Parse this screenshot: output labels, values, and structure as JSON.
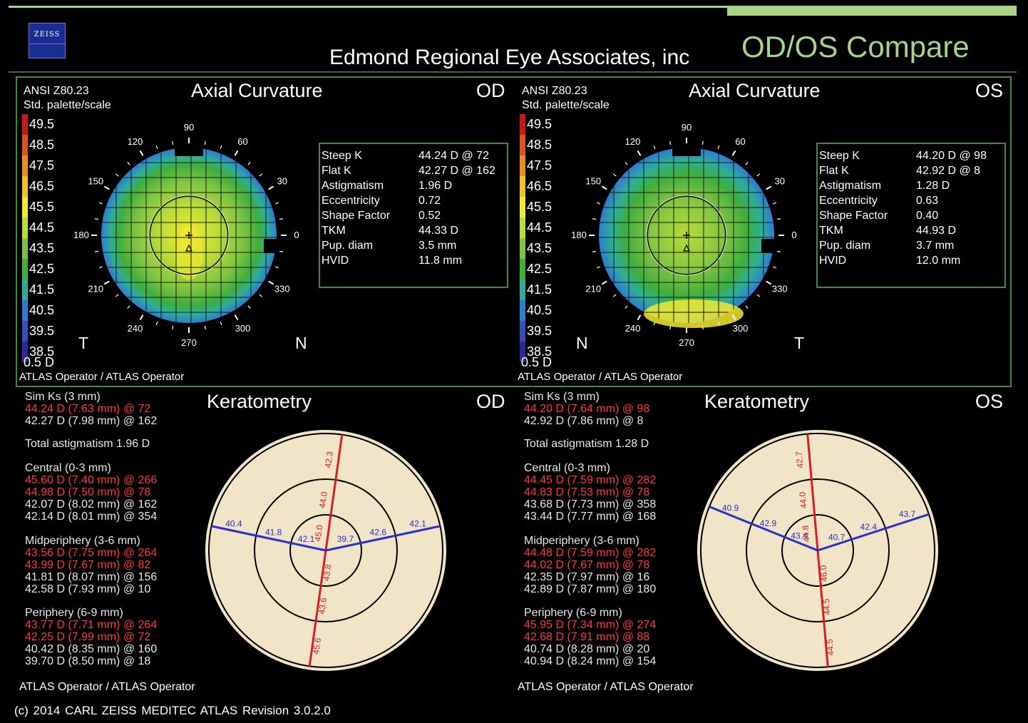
{
  "brand": "ZEISS",
  "clinic": "Edmond Regional Eye Associates, inc",
  "title": "OD/OS Compare",
  "scale": {
    "values": [
      "49.5",
      "48.5",
      "47.5",
      "46.5",
      "45.5",
      "44.5",
      "43.5",
      "42.5",
      "41.5",
      "40.5",
      "39.5",
      "38.5"
    ],
    "colors": [
      "#c81818",
      "#e0501a",
      "#ee8c22",
      "#f3c22a",
      "#f3ea2e",
      "#b8dc3a",
      "#7cc442",
      "#3fae3c",
      "#2eae98",
      "#2e7cd2",
      "#3a4cc4",
      "#2a2a98"
    ]
  },
  "od": {
    "eye": "OD",
    "standard": "ANSI Z80.23",
    "palette": "Std. palette/scale",
    "step": "0.5 D",
    "map_title": "Axial Curvature",
    "operator": "ATLAS Operator / ATLAS Operator",
    "left_dir": "T",
    "right_dir": "N",
    "params": [
      {
        "k": "Steep K",
        "v": "44.24 D @ 72"
      },
      {
        "k": "Flat K",
        "v": "42.27 D @ 162"
      },
      {
        "k": "Astigmatism",
        "v": "1.96 D"
      },
      {
        "k": "Eccentricity",
        "v": "0.72"
      },
      {
        "k": "Shape Factor",
        "v": "0.52"
      },
      {
        "k": "TKM",
        "v": "44.33 D"
      },
      {
        "k": "Pup. diam",
        "v": "3.5 mm"
      },
      {
        "k": "HVID",
        "v": "11.8 mm"
      }
    ],
    "kerato": {
      "title": "Keratometry",
      "sim_head": "Sim Ks (3 mm)",
      "sim": [
        "44.24 D (7.63 mm) @ 72",
        "42.27 D (7.98 mm) @ 162"
      ],
      "total": "Total astigmatism 1.96 D",
      "central_head": "Central (0-3 mm)",
      "central": [
        "45.60 D (7.40 mm) @ 266",
        "44.98 D (7.50 mm) @ 78",
        "42.07 D (8.02 mm) @ 162",
        "42.14 D (8.01 mm) @ 354"
      ],
      "mid_head": "Midperiphery (3-6 mm)",
      "mid": [
        "43.56 D (7.75 mm) @ 264",
        "43.99 D (7.67 mm) @ 82",
        "41.81 D (8.07 mm) @ 156",
        "42.58 D (7.93 mm) @ 10"
      ],
      "per_head": "Periphery (6-9 mm)",
      "per": [
        "43.77 D (7.71 mm) @ 264",
        "42.25 D (7.99 mm) @ 72",
        "40.42 D (8.35 mm) @ 160",
        "39.70 D (8.50 mm) @ 18"
      ],
      "operator": "ATLAS Operator / ATLAS Operator",
      "diag": {
        "red_top": [
          "42.3",
          "44.0",
          "45.0"
        ],
        "red_bot": [
          "45.6",
          "43.6",
          "43.8"
        ],
        "blue_left": [
          "40.4",
          "41.8",
          "42.1"
        ],
        "blue_right": [
          "42.1",
          "42.6",
          "39.7"
        ]
      }
    }
  },
  "os": {
    "eye": "OS",
    "standard": "ANSI Z80.23",
    "palette": "Std. palette/scale",
    "step": "0.5 D",
    "map_title": "Axial Curvature",
    "operator": "ATLAS Operator / ATLAS Operator",
    "left_dir": "N",
    "right_dir": "T",
    "params": [
      {
        "k": "Steep K",
        "v": "44.20 D @ 98"
      },
      {
        "k": "Flat K",
        "v": "42.92 D @ 8"
      },
      {
        "k": "Astigmatism",
        "v": "1.28 D"
      },
      {
        "k": "Eccentricity",
        "v": "0.63"
      },
      {
        "k": "Shape Factor",
        "v": "0.40"
      },
      {
        "k": "TKM",
        "v": "44.93 D"
      },
      {
        "k": "Pup. diam",
        "v": "3.7 mm"
      },
      {
        "k": "HVID",
        "v": "12.0 mm"
      }
    ],
    "kerato": {
      "title": "Keratometry",
      "sim_head": "Sim Ks (3 mm)",
      "sim": [
        "44.20 D (7.64 mm) @ 98",
        "42.92 D (7.86 mm) @ 8"
      ],
      "total": "Total astigmatism 1.28 D",
      "central_head": "Central (0-3 mm)",
      "central": [
        "44.45 D (7.59 mm) @ 282",
        "44.83 D (7.53 mm) @ 78",
        "43.68 D (7.73 mm) @ 358",
        "43.44 D (7.77 mm) @ 168"
      ],
      "mid_head": "Midperiphery (3-6 mm)",
      "mid": [
        "44.48 D (7.59 mm) @ 282",
        "44.02 D (7.67 mm) @ 78",
        "42.35 D (7.97 mm) @ 16",
        "42.89 D (7.87 mm) @ 180"
      ],
      "per_head": "Periphery (6-9 mm)",
      "per": [
        "45.95 D (7.34 mm) @ 274",
        "42.68 D (7.91 mm) @ 88",
        "40.74 D (8.28 mm) @ 20",
        "40.94 D (8.24 mm) @ 154"
      ],
      "operator": "ATLAS Operator / ATLAS Operator",
      "diag": {
        "red_top": [
          "42.7",
          "44.0",
          "44.8"
        ],
        "red_bot": [
          "44.5",
          "44.5",
          "46.0"
        ],
        "blue_left": [
          "40.9",
          "42.9",
          "43.4"
        ],
        "blue_right": [
          "43.7",
          "42.4",
          "40.7"
        ]
      }
    }
  },
  "angles": [
    "90",
    "60",
    "30",
    "0",
    "330",
    "300",
    "270",
    "240",
    "210",
    "180",
    "150",
    "120"
  ],
  "footer": "(c) 2014 CARL ZEISS MEDITEC     ATLAS     Revision  3.0.2.0"
}
